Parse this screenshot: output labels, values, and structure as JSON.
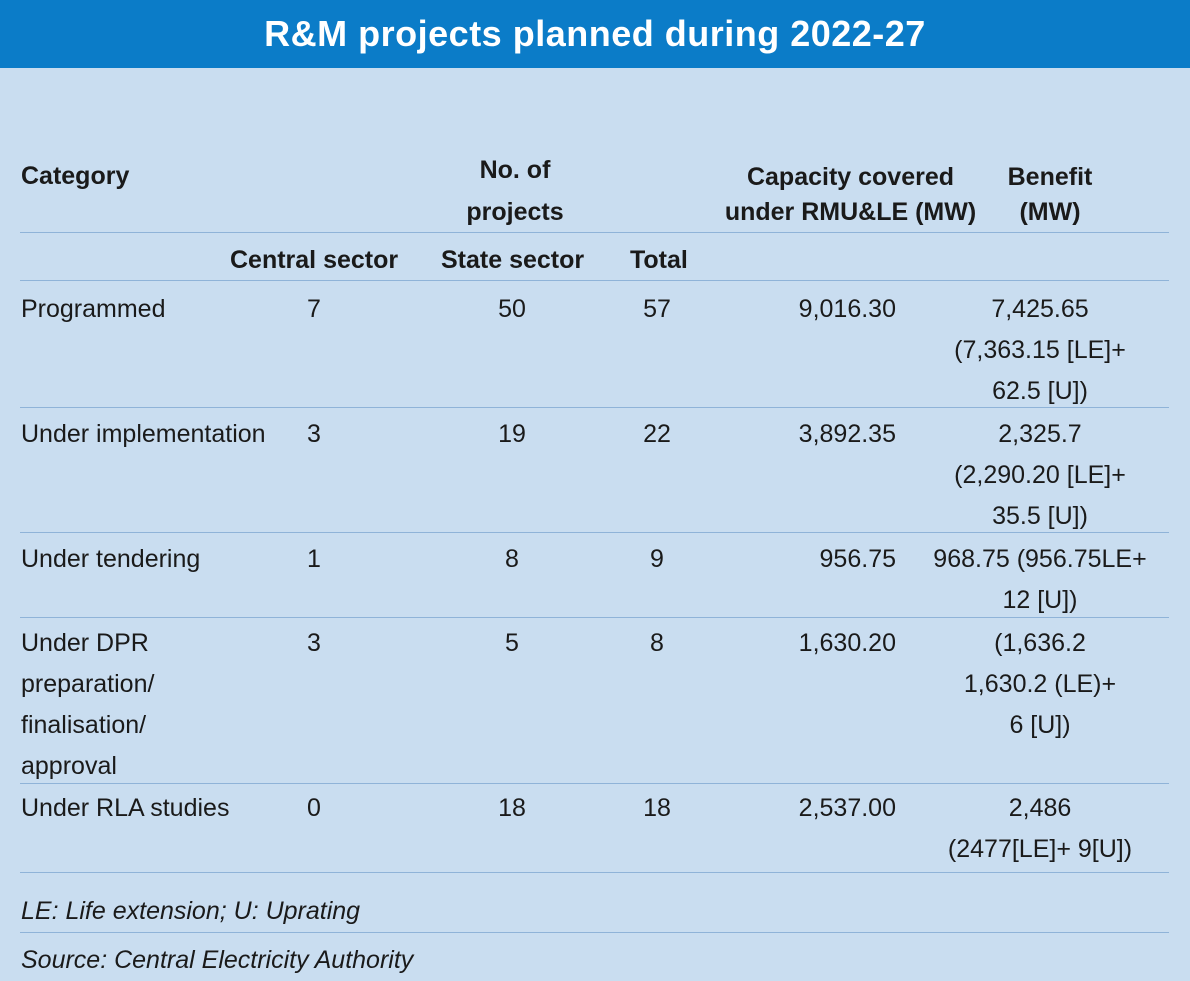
{
  "title": "R&M projects planned during 2022-27",
  "headers": {
    "category": "Category",
    "no_of_projects_line1": "No. of",
    "no_of_projects_line2": "projects",
    "capacity_line1": "Capacity covered",
    "capacity_line2": "under RMU&LE (MW)",
    "benefit_line1": "Benefit",
    "benefit_line2": "(MW)",
    "central": "Central sector",
    "state": "State sector",
    "total": "Total"
  },
  "rows": [
    {
      "category": [
        "Programmed"
      ],
      "central": "7",
      "state": "50",
      "total": "57",
      "capacity": "9,016.30",
      "benefit": [
        "7,425.65",
        "(7,363.15 [LE]+",
        "62.5 [U])"
      ]
    },
    {
      "category": [
        "Under implementation"
      ],
      "central": "3",
      "state": "19",
      "total": "22",
      "capacity": "3,892.35",
      "benefit": [
        "2,325.7",
        "(2,290.20 [LE]+",
        "35.5 [U])"
      ]
    },
    {
      "category": [
        "Under tendering"
      ],
      "central": "1",
      "state": "8",
      "total": "9",
      "capacity": "956.75",
      "benefit": [
        "968.75 (956.75LE+",
        "12 [U])"
      ]
    },
    {
      "category": [
        "Under DPR",
        "preparation/",
        "finalisation/",
        "approval"
      ],
      "central": "3",
      "state": "5",
      "total": "8",
      "capacity": "1,630.20",
      "benefit": [
        "(1,636.2",
        "1,630.2 (LE)+",
        "6 [U])"
      ]
    },
    {
      "category": [
        "Under RLA studies"
      ],
      "central": "0",
      "state": "18",
      "total": "18",
      "capacity": "2,537.00",
      "benefit": [
        "2,486",
        "(2477[LE]+ 9[U])"
      ]
    }
  ],
  "footnote": "LE: Life extension; U: Uprating",
  "source": "Source: Central Electricity Authority",
  "colors": {
    "header_bg": "#0b7cc8",
    "page_bg": "#c9ddf0",
    "rule": "#8fb3d8"
  }
}
